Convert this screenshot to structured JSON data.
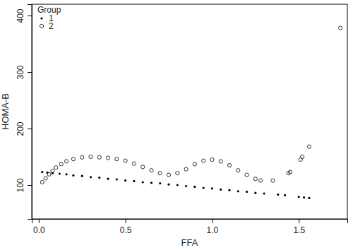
{
  "chart_data": {
    "type": "scatter",
    "x_label": "FFA",
    "y_label": "HOMA-B",
    "legend_title": "Group",
    "legend": "top-left",
    "xlim": [
      -0.04,
      1.78
    ],
    "ylim": [
      40,
      420
    ],
    "xticks": [
      {
        "value": 0,
        "label": "0.0"
      },
      {
        "value": 0.5,
        "label": "0.5"
      },
      {
        "value": 1,
        "label": "1.0"
      },
      {
        "value": 1.5,
        "label": "1.5"
      }
    ],
    "yticks": [
      100,
      200,
      300,
      400
    ],
    "series": [
      {
        "name": "1",
        "color": "#000000",
        "marker": "dot",
        "x": [
          0.02,
          0.05,
          0.08,
          0.12,
          0.16,
          0.2,
          0.25,
          0.3,
          0.35,
          0.4,
          0.45,
          0.5,
          0.55,
          0.6,
          0.65,
          0.7,
          0.75,
          0.8,
          0.85,
          0.9,
          0.95,
          1.0,
          1.05,
          1.1,
          1.15,
          1.2,
          1.25,
          1.3,
          1.38,
          1.42,
          1.5,
          1.53,
          1.56
        ],
        "values": [
          123,
          122,
          121,
          120,
          119,
          117,
          116,
          114,
          113,
          111,
          110,
          108,
          107,
          105,
          104,
          103,
          101,
          100,
          98,
          97,
          95,
          94,
          92,
          91,
          89,
          88,
          86,
          85,
          83,
          82,
          79,
          78,
          77
        ]
      },
      {
        "name": "2",
        "color": "#000000",
        "marker": "open-circle",
        "x": [
          0.02,
          0.04,
          0.06,
          0.08,
          0.1,
          0.13,
          0.16,
          0.2,
          0.25,
          0.3,
          0.35,
          0.4,
          0.45,
          0.5,
          0.55,
          0.6,
          0.65,
          0.7,
          0.75,
          0.8,
          0.85,
          0.9,
          0.95,
          1.0,
          1.05,
          1.1,
          1.15,
          1.2,
          1.25,
          1.28,
          1.35,
          1.44,
          1.45,
          1.51,
          1.52,
          1.56,
          1.74
        ],
        "values": [
          105,
          112,
          119,
          125,
          131,
          137,
          142,
          146,
          149,
          150,
          149,
          148,
          146,
          143,
          138,
          132,
          126,
          121,
          118,
          121,
          128,
          137,
          143,
          145,
          142,
          135,
          126,
          118,
          111,
          108,
          108,
          121,
          123,
          145,
          150,
          168,
          378
        ]
      }
    ]
  }
}
